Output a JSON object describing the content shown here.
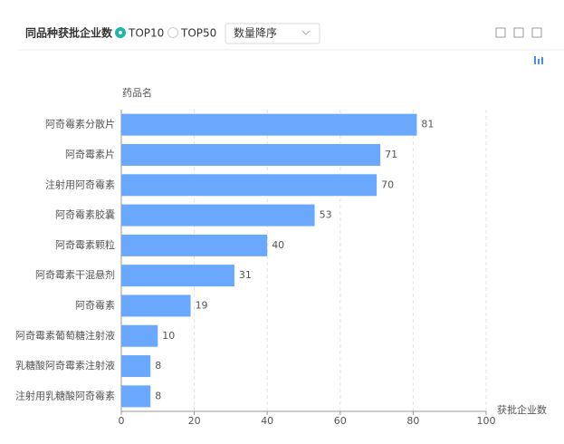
{
  "header": {
    "title": "同品种获批企业数",
    "options": [
      "TOP10",
      "TOP50"
    ],
    "selected": 0,
    "sort": "数量降序"
  },
  "chart_data": {
    "type": "bar",
    "orientation": "horizontal",
    "y_label": "药品名",
    "x_label": "获批企业数",
    "categories": [
      "阿奇霉素分散片",
      "阿奇霉素片",
      "注射用阿奇霉素",
      "阿奇霉素胶囊",
      "阿奇霉素颗粒",
      "阿奇霉素干混悬剂",
      "阿奇霉素",
      "阿奇霉素葡萄糖注射液",
      "乳糖酸阿奇霉素注射液",
      "注射用乳糖酸阿奇霉素"
    ],
    "values": [
      81,
      71,
      70,
      53,
      40,
      31,
      19,
      10,
      8,
      8
    ],
    "color": "#6aa8fd",
    "xlim": [
      0,
      100
    ],
    "xticks": [
      0,
      20,
      40,
      60,
      80,
      100
    ],
    "grid": true
  }
}
